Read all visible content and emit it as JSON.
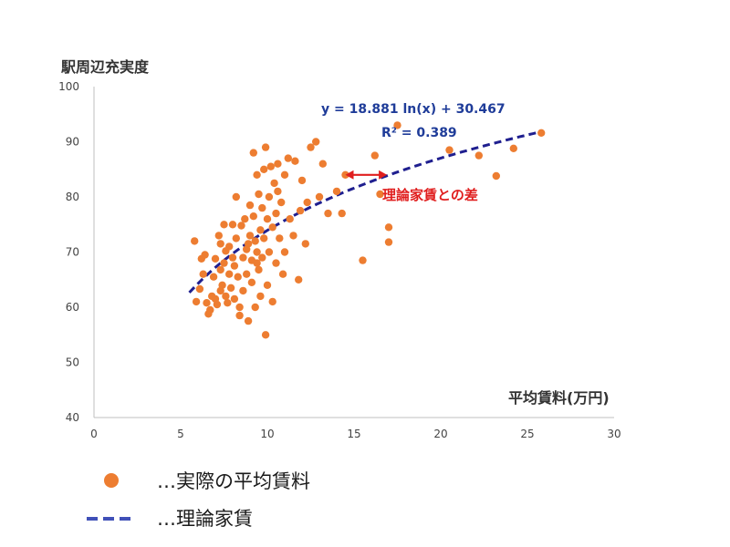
{
  "chart_data": {
    "type": "scatter",
    "ylabel": "駅周辺充実度",
    "xlabel": "平均賃料(万円)",
    "xlim": [
      0,
      30
    ],
    "ylim": [
      40,
      100
    ],
    "x_ticks": [
      0,
      5,
      10,
      15,
      20,
      25,
      30
    ],
    "y_ticks": [
      40,
      50,
      60,
      70,
      80,
      90,
      100
    ],
    "grid": false,
    "colors": {
      "points": "#ED7D31",
      "trend": "#1F1F8F",
      "annotation": "#E01E1E",
      "equation": "#1F3C99"
    },
    "series": [
      {
        "name": "実際の平均賃料",
        "kind": "points",
        "points": [
          [
            5.8,
            72.0
          ],
          [
            5.9,
            61.0
          ],
          [
            6.1,
            63.3
          ],
          [
            6.2,
            68.8
          ],
          [
            6.3,
            66.0
          ],
          [
            6.4,
            69.5
          ],
          [
            6.5,
            60.8
          ],
          [
            6.6,
            58.8
          ],
          [
            6.7,
            59.5
          ],
          [
            6.8,
            62.0
          ],
          [
            6.9,
            65.5
          ],
          [
            7.0,
            68.8
          ],
          [
            7.0,
            61.5
          ],
          [
            7.1,
            60.5
          ],
          [
            7.2,
            73.0
          ],
          [
            7.3,
            71.5
          ],
          [
            7.3,
            66.8
          ],
          [
            7.4,
            64.0
          ],
          [
            7.5,
            75.0
          ],
          [
            7.5,
            68.0
          ],
          [
            7.6,
            62.0
          ],
          [
            7.7,
            60.8
          ],
          [
            7.8,
            71.0
          ],
          [
            7.8,
            66.0
          ],
          [
            7.9,
            63.5
          ],
          [
            8.0,
            69.0
          ],
          [
            8.0,
            75.0
          ],
          [
            8.1,
            67.5
          ],
          [
            8.2,
            80.0
          ],
          [
            8.2,
            72.5
          ],
          [
            8.3,
            65.5
          ],
          [
            8.4,
            58.5
          ],
          [
            8.4,
            60.0
          ],
          [
            8.5,
            74.8
          ],
          [
            8.6,
            69.0
          ],
          [
            8.6,
            63.0
          ],
          [
            8.7,
            76.0
          ],
          [
            8.8,
            70.5
          ],
          [
            8.8,
            66.0
          ],
          [
            8.9,
            57.5
          ],
          [
            9.0,
            78.5
          ],
          [
            9.0,
            73.0
          ],
          [
            9.1,
            68.5
          ],
          [
            9.1,
            64.5
          ],
          [
            9.2,
            88.0
          ],
          [
            9.2,
            76.5
          ],
          [
            9.3,
            72.0
          ],
          [
            9.3,
            60.0
          ],
          [
            9.4,
            84.0
          ],
          [
            9.4,
            70.0
          ],
          [
            9.5,
            80.5
          ],
          [
            9.5,
            66.8
          ],
          [
            9.6,
            74.0
          ],
          [
            9.6,
            62.0
          ],
          [
            9.7,
            78.0
          ],
          [
            9.7,
            69.0
          ],
          [
            9.8,
            85.0
          ],
          [
            9.8,
            72.5
          ],
          [
            9.9,
            89.0
          ],
          [
            9.9,
            55.0
          ],
          [
            10.0,
            76.0
          ],
          [
            10.0,
            64.0
          ],
          [
            10.1,
            80.0
          ],
          [
            10.1,
            70.0
          ],
          [
            10.2,
            85.5
          ],
          [
            10.3,
            74.5
          ],
          [
            10.3,
            61.0
          ],
          [
            10.4,
            82.5
          ],
          [
            10.5,
            77.0
          ],
          [
            10.5,
            68.0
          ],
          [
            10.6,
            86.0
          ],
          [
            10.7,
            72.5
          ],
          [
            10.8,
            79.0
          ],
          [
            10.9,
            66.0
          ],
          [
            11.0,
            84.0
          ],
          [
            11.0,
            70.0
          ],
          [
            11.2,
            87.0
          ],
          [
            11.3,
            76.0
          ],
          [
            11.5,
            73.0
          ],
          [
            11.6,
            86.5
          ],
          [
            11.8,
            65.0
          ],
          [
            11.9,
            77.5
          ],
          [
            12.0,
            83.0
          ],
          [
            12.2,
            71.5
          ],
          [
            12.3,
            79.0
          ],
          [
            12.5,
            89.0
          ],
          [
            12.8,
            90.0
          ],
          [
            13.0,
            80.0
          ],
          [
            13.2,
            86.0
          ],
          [
            13.5,
            77.0
          ],
          [
            14.0,
            81.0
          ],
          [
            14.3,
            77.0
          ],
          [
            14.5,
            84.0
          ],
          [
            15.5,
            68.5
          ],
          [
            16.2,
            87.5
          ],
          [
            16.5,
            80.5
          ],
          [
            17.0,
            74.5
          ],
          [
            17.0,
            71.8
          ],
          [
            17.5,
            93.0
          ],
          [
            20.5,
            88.5
          ],
          [
            22.2,
            87.5
          ],
          [
            23.2,
            83.8
          ],
          [
            24.2,
            88.8
          ],
          [
            25.8,
            91.6
          ],
          [
            7.3,
            63.0
          ],
          [
            7.6,
            70.2
          ],
          [
            8.1,
            61.5
          ],
          [
            8.9,
            71.5
          ],
          [
            9.4,
            68.0
          ],
          [
            10.6,
            81.0
          ]
        ]
      },
      {
        "name": "理論家賃",
        "kind": "trendline",
        "equation": "y = 18.881 ln(x) + 30.467",
        "r_squared": "R² = 0.389",
        "coef_a": 18.881,
        "coef_b": 30.467,
        "x_range": [
          5.5,
          25.8
        ]
      }
    ],
    "annotation": {
      "text": "理論家賃との差",
      "x": 15.7,
      "y_from": 84.0,
      "y_to": 84.0,
      "x_from": 14.5,
      "x_to": 16.9
    }
  },
  "legend": {
    "points_label": "…実際の平均賃料",
    "trend_label": "…理論家賃"
  }
}
